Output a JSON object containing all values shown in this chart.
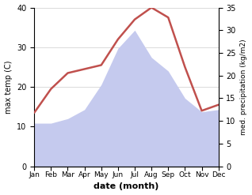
{
  "months": [
    "Jan",
    "Feb",
    "Mar",
    "Apr",
    "May",
    "Jun",
    "Jul",
    "Aug",
    "Sep",
    "Oct",
    "Nov",
    "Dec"
  ],
  "temp": [
    13.5,
    19.5,
    23.5,
    24.5,
    25.5,
    32.0,
    37.0,
    40.0,
    37.5,
    25.0,
    14.0,
    15.5
  ],
  "precip": [
    9.5,
    9.5,
    10.5,
    12.5,
    18.0,
    26.0,
    30.0,
    24.0,
    21.0,
    15.0,
    12.0,
    12.5
  ],
  "temp_color": "#c0504d",
  "precip_fill_color": "#c5caee",
  "precip_edge_color": "#c5caee",
  "temp_ylim": [
    0,
    40
  ],
  "precip_ylim": [
    0,
    35
  ],
  "temp_yticks": [
    0,
    10,
    20,
    30,
    40
  ],
  "precip_yticks": [
    0,
    5,
    10,
    15,
    20,
    25,
    30,
    35
  ],
  "xlabel": "date (month)",
  "ylabel_left": "max temp (C)",
  "ylabel_right": "med. precipitation (kg/m2)",
  "background_color": "#ffffff",
  "temp_linewidth": 1.8,
  "grid_color": "#cccccc",
  "figsize": [
    3.18,
    2.47
  ],
  "dpi": 100
}
